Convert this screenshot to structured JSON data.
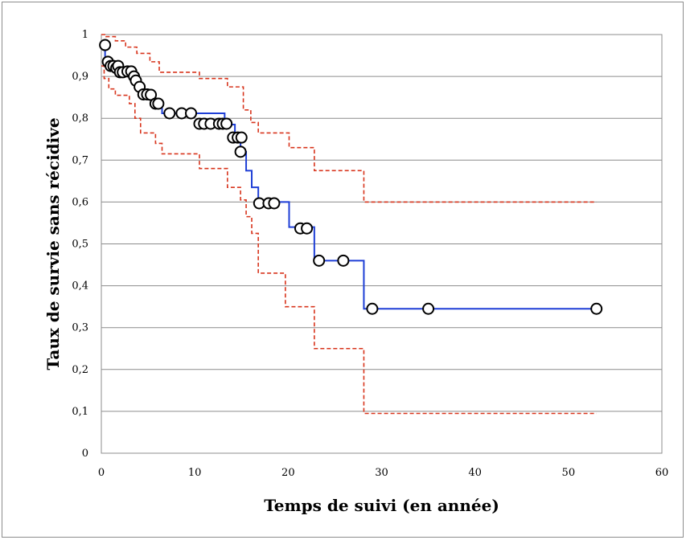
{
  "chart_data": {
    "type": "line",
    "title": "",
    "xlabel": "Temps de suivi (en année)",
    "ylabel": "Taux de survie sans récidive",
    "xlim": [
      0,
      60
    ],
    "ylim": [
      0,
      1
    ],
    "grid": true,
    "legend": "none",
    "x_ticks": [
      "0",
      "10",
      "20",
      "30",
      "40",
      "50",
      "60"
    ],
    "y_ticks": [
      "0",
      "0,1",
      "0,2",
      "0,3",
      "0,4",
      "0,5",
      "0,6",
      "0,7",
      "0,8",
      "0,9",
      "1"
    ],
    "colors": {
      "survival": "#1f3fd6",
      "ci": "#d8351d",
      "marker_fill": "#ffffff",
      "marker_stroke": "#000000"
    },
    "series": [
      {
        "style": "step-solid",
        "color": "#1f3fd6",
        "x": [
          0,
          0.4,
          0.6,
          0.8,
          1.0,
          1.3,
          1.8,
          2.2,
          3.0,
          3.6,
          4.0,
          4.4,
          5.5,
          6.5,
          13.2,
          14.3,
          14.9,
          15.5,
          16.1,
          16.8,
          20.1,
          22.8,
          28.1,
          53.0
        ],
        "y": [
          0.98,
          0.94,
          0.935,
          0.93,
          0.925,
          0.92,
          0.915,
          0.912,
          0.905,
          0.89,
          0.875,
          0.855,
          0.835,
          0.812,
          0.785,
          0.755,
          0.72,
          0.675,
          0.635,
          0.6,
          0.54,
          0.46,
          0.345,
          0.345
        ]
      },
      {
        "style": "step-dashed",
        "color": "#d8351d",
        "x": [
          0,
          0.5,
          1.5,
          2.6,
          3.8,
          5.2,
          6.2,
          10.5,
          13.5,
          15.2,
          16.0,
          16.8,
          19.0,
          20.1,
          22.8,
          28.1,
          53.0
        ],
        "y": [
          1.0,
          0.995,
          0.985,
          0.97,
          0.955,
          0.935,
          0.91,
          0.895,
          0.875,
          0.82,
          0.79,
          0.765,
          0.765,
          0.73,
          0.675,
          0.6,
          0.6
        ]
      },
      {
        "style": "step-dashed",
        "color": "#d8351d",
        "x": [
          0,
          0.3,
          0.8,
          1.5,
          3.0,
          3.6,
          4.2,
          5.8,
          6.5,
          10.5,
          13.5,
          14.9,
          15.5,
          16.1,
          16.8,
          19.7,
          22.8,
          28.1,
          53.0
        ],
        "y": [
          0.925,
          0.895,
          0.87,
          0.855,
          0.835,
          0.8,
          0.765,
          0.74,
          0.715,
          0.68,
          0.635,
          0.605,
          0.565,
          0.525,
          0.43,
          0.35,
          0.25,
          0.095,
          0.095
        ]
      }
    ],
    "censored": {
      "x": [
        0.4,
        0.7,
        1.0,
        1.3,
        1.6,
        1.8,
        2.0,
        2.3,
        2.8,
        3.2,
        3.5,
        3.7,
        4.1,
        4.5,
        4.9,
        5.3,
        5.8,
        6.1,
        7.3,
        8.6,
        9.6,
        10.5,
        11.0,
        11.7,
        12.6,
        13.0,
        13.4,
        14.1,
        14.6,
        15.0,
        14.9,
        16.9,
        17.9,
        18.5,
        21.3,
        22.0,
        23.3,
        25.9,
        29.0,
        35.0,
        53.0
      ],
      "y": [
        0.975,
        0.935,
        0.925,
        0.925,
        0.92,
        0.925,
        0.91,
        0.91,
        0.912,
        0.912,
        0.9,
        0.89,
        0.875,
        0.857,
        0.857,
        0.856,
        0.835,
        0.835,
        0.812,
        0.812,
        0.812,
        0.787,
        0.787,
        0.787,
        0.787,
        0.787,
        0.787,
        0.754,
        0.754,
        0.754,
        0.72,
        0.597,
        0.597,
        0.597,
        0.537,
        0.537,
        0.46,
        0.46,
        0.345,
        0.345,
        0.345
      ]
    }
  }
}
